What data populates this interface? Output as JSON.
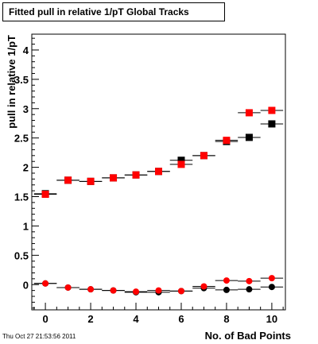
{
  "header": {
    "title": "Fitted pull in relative 1/pT  Global Tracks"
  },
  "footer": {
    "timestamp": "Thu Oct 27 21:53:56 2011"
  },
  "colors": {
    "series_black": "#000000",
    "series_red": "#ff0000"
  },
  "chart_data": {
    "type": "scatter",
    "title": "Fitted pull in relative 1/pT  Global Tracks",
    "xlabel": "No. of Bad Points",
    "ylabel": "pull in relative 1/pT",
    "xlim": [
      -0.6,
      10.6
    ],
    "ylim": [
      -0.43,
      4.27
    ],
    "x_ticks": [
      0,
      2,
      4,
      6,
      8,
      10
    ],
    "x_tick_labels": [
      "0",
      "2",
      "4",
      "6",
      "8",
      "10"
    ],
    "y_ticks": [
      0,
      0.5,
      1,
      1.5,
      2,
      2.5,
      3,
      3.5,
      4
    ],
    "y_tick_labels": [
      "0",
      "0.5",
      "1",
      "1.5",
      "2",
      "2.5",
      "3",
      "3.5",
      "4"
    ],
    "grid": false,
    "legend": "none",
    "series": [
      {
        "marker": "square",
        "color": "#000000",
        "x": [
          0,
          1,
          2,
          3,
          4,
          5,
          6,
          7,
          8,
          9,
          10
        ],
        "y": [
          1.55,
          1.78,
          1.76,
          1.82,
          1.87,
          1.93,
          2.12,
          2.2,
          2.44,
          2.51,
          2.74
        ]
      },
      {
        "marker": "square",
        "color": "#ff0000",
        "x": [
          0,
          1,
          2,
          3,
          4,
          5,
          6,
          7,
          8,
          9,
          10
        ],
        "y": [
          1.54,
          1.78,
          1.76,
          1.82,
          1.87,
          1.93,
          2.05,
          2.2,
          2.46,
          2.93,
          2.97
        ]
      },
      {
        "marker": "circle",
        "color": "#000000",
        "x": [
          0,
          1,
          2,
          3,
          4,
          5,
          6,
          7,
          8,
          9,
          10
        ],
        "y": [
          0.02,
          -0.05,
          -0.08,
          -0.1,
          -0.13,
          -0.13,
          -0.11,
          -0.06,
          -0.09,
          -0.08,
          -0.04
        ]
      },
      {
        "marker": "circle",
        "color": "#ff0000",
        "x": [
          0,
          1,
          2,
          3,
          4,
          5,
          6,
          7,
          8,
          9,
          10
        ],
        "y": [
          0.02,
          -0.05,
          -0.08,
          -0.1,
          -0.12,
          -0.1,
          -0.11,
          -0.03,
          0.07,
          0.06,
          0.11
        ]
      }
    ]
  }
}
